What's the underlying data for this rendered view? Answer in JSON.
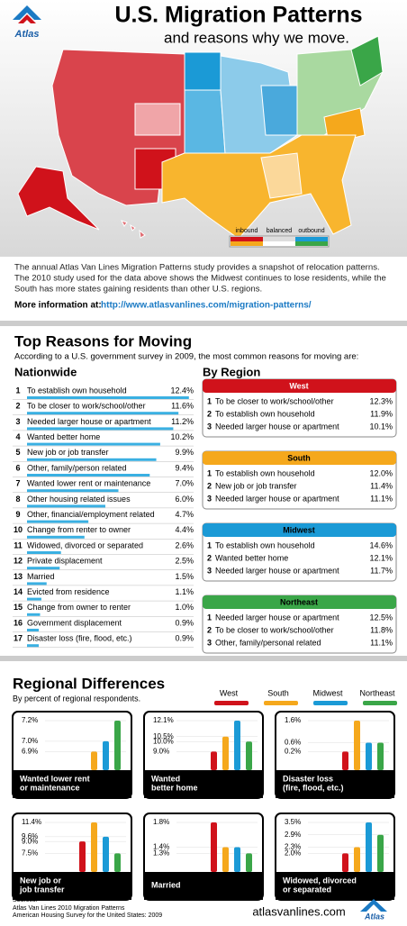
{
  "header": {
    "logo": "Atlas",
    "title": "U.S. Migration Patterns",
    "subtitle": "and reasons why we move."
  },
  "map": {
    "legend": [
      "inbound",
      "balanced",
      "outbound"
    ]
  },
  "intro": {
    "text": [
      "The annual Atlas Van Lines Migration Patterns study provides a snapshot of relocation patterns.",
      "The 2010 study used for the data above shows the Midwest continues to lose residents, while the",
      "South has more states gaining residents than other U.S. regions."
    ],
    "more_label": "More information at:",
    "more_link": "http://www.atlasvanlines.com/migration-patterns/"
  },
  "top_reasons": {
    "title": "Top Reasons for Moving",
    "intro": "According to a U.S. government survey in 2009, the most common reasons for moving are:",
    "nationwide": {
      "title": "Nationwide",
      "items": [
        {
          "rank": 1,
          "reason": "To establish own household",
          "percent": 12.4,
          "label": "12.4%"
        },
        {
          "rank": 2,
          "reason": "To be closer to work/school/other",
          "percent": 11.6,
          "label": "11.6%"
        },
        {
          "rank": 3,
          "reason": "Needed larger house or apartment",
          "percent": 11.2,
          "label": "11.2%"
        },
        {
          "rank": 4,
          "reason": "Wanted better home",
          "percent": 10.2,
          "label": "10.2%"
        },
        {
          "rank": 5,
          "reason": "New job or job transfer",
          "percent": 9.9,
          "label": "9.9%"
        },
        {
          "rank": 6,
          "reason": "Other, family/person related",
          "percent": 9.4,
          "label": "9.4%"
        },
        {
          "rank": 7,
          "reason": "Wanted lower rent or maintenance",
          "percent": 7.0,
          "label": "7.0%"
        },
        {
          "rank": 8,
          "reason": "Other housing related issues",
          "percent": 6.0,
          "label": "6.0%"
        },
        {
          "rank": 9,
          "reason": "Other, financial/employment related",
          "percent": 4.7,
          "label": "4.7%"
        },
        {
          "rank": 10,
          "reason": "Change from renter to owner",
          "percent": 4.4,
          "label": "4.4%"
        },
        {
          "rank": 11,
          "reason": "Widowed, divorced or separated",
          "percent": 2.6,
          "label": "2.6%"
        },
        {
          "rank": 12,
          "reason": "Private displacement",
          "percent": 2.5,
          "label": "2.5%"
        },
        {
          "rank": 13,
          "reason": "Married",
          "percent": 1.5,
          "label": "1.5%"
        },
        {
          "rank": 14,
          "reason": "Evicted from residence",
          "percent": 1.1,
          "label": "1.1%"
        },
        {
          "rank": 15,
          "reason": "Change from owner to renter",
          "percent": 1.0,
          "label": "1.0%"
        },
        {
          "rank": 16,
          "reason": "Government displacement",
          "percent": 0.9,
          "label": "0.9%"
        },
        {
          "rank": 17,
          "reason": "Disaster loss (fire, flood, etc.)",
          "percent": 0.9,
          "label": "0.9%"
        }
      ]
    },
    "by_region": {
      "title": "By Region",
      "regions": [
        {
          "name": "West",
          "color": "#d0121b",
          "text": "#fff",
          "items": [
            {
              "rank": 1,
              "reason": "To be closer to work/school/other",
              "label": "12.3%"
            },
            {
              "rank": 2,
              "reason": "To establish own household",
              "label": "11.9%"
            },
            {
              "rank": 3,
              "reason": "Needed larger house or apartment",
              "label": "10.1%"
            }
          ]
        },
        {
          "name": "South",
          "color": "#f5a81c",
          "text": "#000",
          "items": [
            {
              "rank": 1,
              "reason": "To establish own household",
              "label": "12.0%"
            },
            {
              "rank": 2,
              "reason": "New job or job transfer",
              "label": "11.4%"
            },
            {
              "rank": 3,
              "reason": "Needed larger house or apartment",
              "label": "11.1%"
            }
          ]
        },
        {
          "name": "Midwest",
          "color": "#1b9ad6",
          "text": "#000",
          "items": [
            {
              "rank": 1,
              "reason": "To establish own household",
              "label": "14.6%"
            },
            {
              "rank": 2,
              "reason": "Wanted better home",
              "label": "12.1%"
            },
            {
              "rank": 3,
              "reason": "Needed larger house or apartment",
              "label": "11.7%"
            }
          ]
        },
        {
          "name": "Northeast",
          "color": "#3aa648",
          "text": "#000",
          "items": [
            {
              "rank": 1,
              "reason": "Needed larger house or apartment",
              "label": "12.5%"
            },
            {
              "rank": 2,
              "reason": "To be closer to work/school/other",
              "label": "11.8%"
            },
            {
              "rank": 3,
              "reason": "Other, family/personal related",
              "label": "11.1%"
            }
          ]
        }
      ]
    }
  },
  "regional_differences": {
    "title": "Regional Differences",
    "subtitle": "By percent of regional respondents.",
    "legend": [
      {
        "name": "West",
        "color": "#d0121b"
      },
      {
        "name": "South",
        "color": "#f5a81c"
      },
      {
        "name": "Midwest",
        "color": "#1b9ad6"
      },
      {
        "name": "Northeast",
        "color": "#3aa648"
      }
    ],
    "charts": [
      {
        "title": [
          "Wanted lower rent",
          "or maintenance"
        ],
        "ticks": [
          {
            "value": 7.2,
            "label": "7.2%"
          },
          {
            "value": 7.0,
            "label": "7.0%"
          },
          {
            "value": 6.9,
            "label": "6.9%"
          }
        ],
        "values": [
          6.6,
          6.9,
          7.0,
          7.2
        ]
      },
      {
        "title": [
          "Wanted",
          "better home"
        ],
        "ticks": [
          {
            "value": 12.1,
            "label": "12.1%"
          },
          {
            "value": 10.5,
            "label": "10.5%"
          },
          {
            "value": 10.0,
            "label": "10.0%"
          },
          {
            "value": 9.0,
            "label": "9.0%"
          }
        ],
        "values": [
          9.0,
          10.5,
          12.1,
          10.0
        ]
      },
      {
        "title": [
          "Disaster loss",
          "(fire, flood, etc.)"
        ],
        "ticks": [
          {
            "value": 1.6,
            "label": "1.6%"
          },
          {
            "value": 0.6,
            "label": "0.6%"
          },
          {
            "value": 0.2,
            "label": "0.2%"
          }
        ],
        "values": [
          0.2,
          1.6,
          0.6,
          0.6
        ]
      },
      {
        "title": [
          "New job or",
          "job transfer"
        ],
        "ticks": [
          {
            "value": 11.4,
            "label": "11.4%"
          },
          {
            "value": 9.6,
            "label": "9.6%"
          },
          {
            "value": 9.0,
            "label": "9.0%"
          },
          {
            "value": 7.5,
            "label": "7.5%"
          }
        ],
        "values": [
          9.0,
          11.4,
          9.6,
          7.5
        ]
      },
      {
        "title": [
          "Married"
        ],
        "ticks": [
          {
            "value": 1.8,
            "label": "1.8%"
          },
          {
            "value": 1.4,
            "label": "1.4%"
          },
          {
            "value": 1.3,
            "label": "1.3%"
          }
        ],
        "values": [
          1.8,
          1.4,
          1.4,
          1.3
        ]
      },
      {
        "title": [
          "Widowed, divorced",
          "or separated"
        ],
        "ticks": [
          {
            "value": 3.5,
            "label": "3.5%"
          },
          {
            "value": 2.9,
            "label": "2.9%"
          },
          {
            "value": 2.3,
            "label": "2.3%"
          },
          {
            "value": 2.0,
            "label": "2.0%"
          }
        ],
        "values": [
          2.0,
          2.3,
          3.5,
          2.9
        ]
      }
    ]
  },
  "footer": {
    "sources_label": "Sources:",
    "sources": [
      "Atlas Van Lines 2010 Migration Patterns",
      "American Housing Survey for the United States: 2009"
    ],
    "site": "atlasvanlines.com",
    "logo": "Atlas"
  }
}
